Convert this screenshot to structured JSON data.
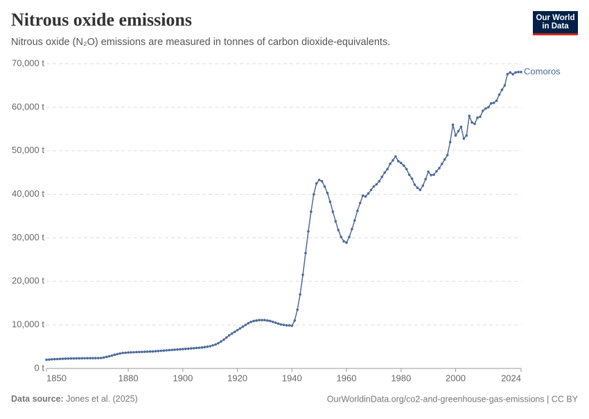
{
  "chart_data": {
    "type": "line",
    "title": "Nitrous oxide emissions",
    "subtitle": "Nitrous oxide (N₂O) emissions are measured in tonnes of carbon dioxide-equivalents.",
    "logo": "Our World in Data",
    "source_label": "Data source:",
    "source": "Jones et al. (2025)",
    "footer_right": "OurWorldinData.org/co2-and-greenhouse-gas-emissions | CC BY",
    "xlim": [
      1850,
      2024
    ],
    "xticks": [
      1850,
      1880,
      1900,
      1920,
      1940,
      1960,
      1980,
      2000,
      2024
    ],
    "ylim": [
      0,
      70000
    ],
    "yticks": [
      {
        "value": 0,
        "label": "0 t"
      },
      {
        "value": 10000,
        "label": "10,000 t"
      },
      {
        "value": 20000,
        "label": "20,000 t"
      },
      {
        "value": 30000,
        "label": "30,000 t"
      },
      {
        "value": 40000,
        "label": "40,000 t"
      },
      {
        "value": 50000,
        "label": "50,000 t"
      },
      {
        "value": 60000,
        "label": "60,000 t"
      },
      {
        "value": 70000,
        "label": "70,000 t"
      }
    ],
    "grid": true,
    "x": [
      1850,
      1851,
      1852,
      1853,
      1854,
      1855,
      1856,
      1857,
      1858,
      1859,
      1860,
      1861,
      1862,
      1863,
      1864,
      1865,
      1866,
      1867,
      1868,
      1869,
      1870,
      1871,
      1872,
      1873,
      1874,
      1875,
      1876,
      1877,
      1878,
      1879,
      1880,
      1881,
      1882,
      1883,
      1884,
      1885,
      1886,
      1887,
      1888,
      1889,
      1890,
      1891,
      1892,
      1893,
      1894,
      1895,
      1896,
      1897,
      1898,
      1899,
      1900,
      1901,
      1902,
      1903,
      1904,
      1905,
      1906,
      1907,
      1908,
      1909,
      1910,
      1911,
      1912,
      1913,
      1914,
      1915,
      1916,
      1917,
      1918,
      1919,
      1920,
      1921,
      1922,
      1923,
      1924,
      1925,
      1926,
      1927,
      1928,
      1929,
      1930,
      1931,
      1932,
      1933,
      1934,
      1935,
      1936,
      1937,
      1938,
      1939,
      1940,
      1941,
      1942,
      1943,
      1944,
      1945,
      1946,
      1947,
      1948,
      1949,
      1950,
      1951,
      1952,
      1953,
      1954,
      1955,
      1956,
      1957,
      1958,
      1959,
      1960,
      1961,
      1962,
      1963,
      1964,
      1965,
      1966,
      1967,
      1968,
      1969,
      1970,
      1971,
      1972,
      1973,
      1974,
      1975,
      1976,
      1977,
      1978,
      1979,
      1980,
      1981,
      1982,
      1983,
      1984,
      1985,
      1986,
      1987,
      1988,
      1989,
      1990,
      1991,
      1992,
      1993,
      1994,
      1995,
      1996,
      1997,
      1998,
      1999,
      2000,
      2001,
      2002,
      2003,
      2004,
      2005,
      2006,
      2007,
      2008,
      2009,
      2010,
      2011,
      2012,
      2013,
      2014,
      2015,
      2016,
      2017,
      2018,
      2019,
      2020,
      2021,
      2022,
      2023,
      2024
    ],
    "series": [
      {
        "name": "Comoros",
        "color": "#4c6a9c",
        "values": [
          2000,
          2050,
          2100,
          2130,
          2160,
          2190,
          2220,
          2250,
          2270,
          2290,
          2300,
          2310,
          2320,
          2330,
          2340,
          2350,
          2350,
          2360,
          2370,
          2380,
          2400,
          2500,
          2650,
          2800,
          2950,
          3150,
          3300,
          3450,
          3550,
          3600,
          3650,
          3700,
          3720,
          3750,
          3780,
          3800,
          3830,
          3850,
          3880,
          3900,
          3950,
          4000,
          4050,
          4100,
          4150,
          4200,
          4250,
          4300,
          4350,
          4400,
          4450,
          4500,
          4550,
          4600,
          4650,
          4700,
          4750,
          4800,
          4900,
          5000,
          5100,
          5300,
          5500,
          5800,
          6200,
          6600,
          7100,
          7600,
          8000,
          8400,
          8800,
          9200,
          9600,
          10000,
          10400,
          10700,
          10900,
          11000,
          11100,
          11100,
          11100,
          11000,
          10900,
          10700,
          10500,
          10300,
          10100,
          10000,
          9900,
          9900,
          9800,
          11000,
          13500,
          17000,
          21500,
          26500,
          31500,
          36000,
          40000,
          42500,
          43300,
          43000,
          41800,
          40300,
          38300,
          36000,
          33800,
          31800,
          30200,
          29200,
          28900,
          30200,
          32000,
          34000,
          36200,
          38000,
          39700,
          39500,
          40200,
          41000,
          41800,
          42300,
          43000,
          44000,
          45000,
          45800,
          47000,
          47800,
          48700,
          47600,
          47200,
          46600,
          45800,
          44500,
          43600,
          42200,
          41500,
          41000,
          42000,
          43500,
          45200,
          44400,
          44500,
          45300,
          46000,
          47000,
          48000,
          49000,
          52000,
          56000,
          53500,
          54500,
          55500,
          52800,
          53500,
          58000,
          56500,
          56200,
          57600,
          57800,
          59200,
          59700,
          60000,
          60900,
          61000,
          61500,
          62900,
          64000,
          65000,
          67600,
          68000,
          67600,
          68000,
          68100,
          68100
        ]
      }
    ]
  }
}
